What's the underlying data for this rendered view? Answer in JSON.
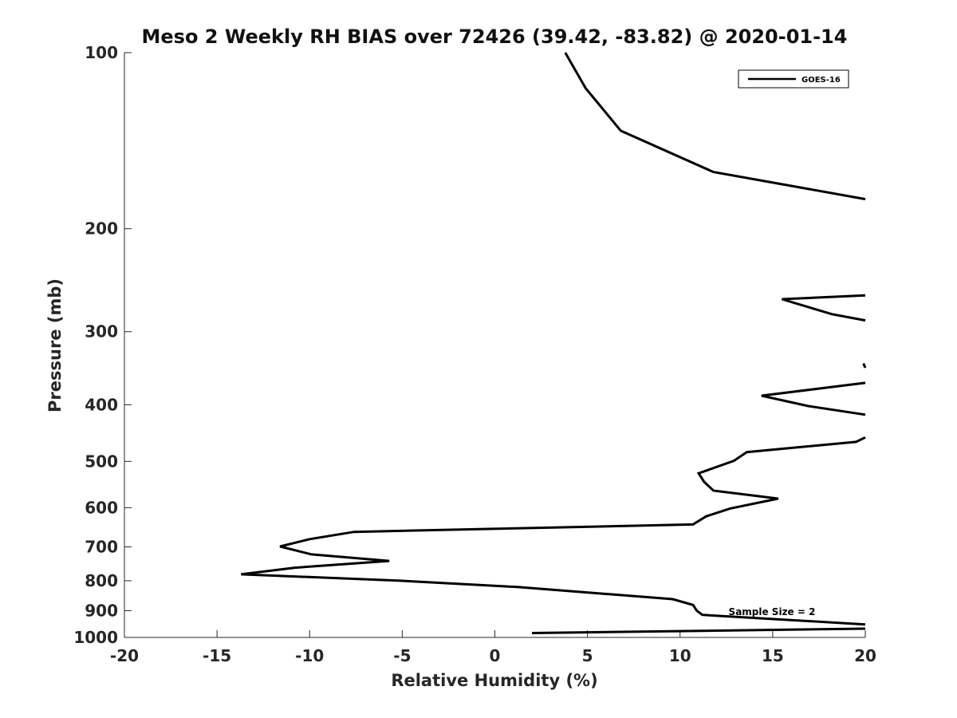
{
  "chart_data": {
    "type": "line",
    "title": "Meso 2 Weekly RH BIAS over 72426 (39.42, -83.82) @ 2020-01-14",
    "xlabel": "Relative Humidity (%)",
    "ylabel": "Pressure (mb)",
    "xlim": [
      -20,
      20
    ],
    "ylim": [
      100,
      1000
    ],
    "y_scale": "log",
    "y_reversed": true,
    "grid": false,
    "x_ticks": [
      "-20",
      "-15",
      "-10",
      "-5",
      "0",
      "5",
      "10",
      "15",
      "20"
    ],
    "y_ticks": [
      "100",
      "200",
      "300",
      "400",
      "500",
      "600",
      "700",
      "800",
      "900",
      "1000"
    ],
    "legend": {
      "position": "top-right",
      "entries": [
        "GOES-16"
      ]
    },
    "annotation": "Sample Size = 2",
    "series": [
      {
        "name": "GOES-16",
        "color": "#000000",
        "segments": [
          [
            [
              3.8,
              100
            ],
            [
              4.9,
              115
            ],
            [
              6.8,
              136
            ],
            [
              11.8,
              160
            ],
            [
              20,
              178
            ]
          ],
          [
            [
              20,
              260
            ],
            [
              15.5,
              264
            ],
            [
              18.2,
              280
            ],
            [
              20,
              287
            ]
          ],
          [
            [
              19.9,
              340
            ],
            [
              20,
              346
            ]
          ],
          [
            [
              20,
              367
            ],
            [
              14.4,
              386
            ],
            [
              16.9,
              402
            ],
            [
              20,
              416
            ]
          ],
          [
            [
              20,
              455
            ],
            [
              19.5,
              463
            ],
            [
              13.6,
              482
            ],
            [
              12.9,
              499
            ],
            [
              11.0,
              524
            ],
            [
              11.3,
              542
            ],
            [
              11.8,
              561
            ],
            [
              15.3,
              579
            ],
            [
              12.7,
              602
            ],
            [
              11.4,
              621
            ],
            [
              10.7,
              641
            ],
            [
              -7.6,
              660
            ],
            [
              -10.0,
              679
            ],
            [
              -11.6,
              699
            ],
            [
              -9.9,
              721
            ],
            [
              -5.7,
              740
            ],
            [
              -10.8,
              760
            ],
            [
              -13.7,
              780
            ],
            [
              -5.0,
              800
            ],
            [
              1.2,
              820
            ],
            [
              9.6,
              860
            ],
            [
              10.7,
              880
            ],
            [
              10.9,
              900
            ],
            [
              11.2,
              915
            ],
            [
              20,
              950
            ]
          ],
          [
            [
              20,
              966
            ],
            [
              2.0,
              983
            ]
          ]
        ]
      }
    ]
  }
}
